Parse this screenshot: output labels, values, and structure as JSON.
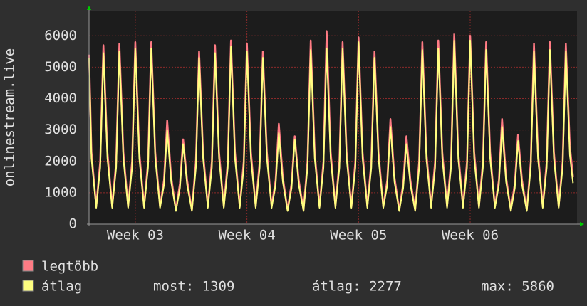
{
  "chart_data": {
    "type": "line",
    "y_label": "onlinestream.live",
    "x": [
      0,
      0.15,
      0.45,
      0.7,
      0.9,
      1.15,
      1.45,
      1.7,
      1.9,
      2.15,
      2.45,
      2.7,
      2.9,
      3.15,
      3.45,
      3.7,
      3.9,
      4.15,
      4.45,
      4.7,
      4.9,
      5.15,
      5.45,
      5.7,
      5.9,
      6.15,
      6.45,
      6.7,
      6.9,
      7.15,
      7.45,
      7.7,
      7.9,
      8.15,
      8.45,
      8.7,
      8.9,
      9.15,
      9.45,
      9.7,
      9.9,
      10.15,
      10.45,
      10.7,
      10.9,
      11.15,
      11.45,
      11.7,
      11.9,
      12.15,
      12.45,
      12.7,
      12.9,
      13.15,
      13.45,
      13.7,
      13.9,
      14.15,
      14.45,
      14.7,
      14.9,
      15.15,
      15.45,
      15.7,
      15.9,
      16.15,
      16.45,
      16.7,
      16.9,
      17.15,
      17.45,
      17.7,
      17.9,
      18.15,
      18.45,
      18.7,
      18.9,
      19.15,
      19.45,
      19.7,
      19.9,
      20.15,
      20.45,
      20.7,
      20.9,
      21.15,
      21.45,
      21.7,
      21.9,
      22.15,
      22.45,
      22.7,
      22.9,
      23.15,
      23.45,
      23.7,
      23.9,
      24.15,
      24.45,
      24.7,
      24.9,
      25.15,
      25.45,
      25.7,
      25.9,
      26.15,
      26.45,
      26.7,
      26.9,
      27.15,
      27.45,
      27.7,
      27.9,
      28.15,
      28.45,
      28.7,
      28.9,
      29.15,
      29.45,
      29.7,
      29.9,
      30.15,
      30.35
    ],
    "xlim": [
      0,
      30.6
    ],
    "xticks": [
      {
        "value": 2.9,
        "label": "Week 03"
      },
      {
        "value": 9.9,
        "label": "Week 04"
      },
      {
        "value": 16.9,
        "label": "Week 05"
      },
      {
        "value": 23.9,
        "label": "Week 06"
      }
    ],
    "ylim": [
      0,
      6800
    ],
    "yticks": [
      0,
      1000,
      2000,
      3000,
      4000,
      5000,
      6000
    ],
    "grid": true,
    "series": [
      {
        "name": "legtöbb",
        "color": "#ff7b84",
        "values": [
          5400,
          2300,
          560,
          2000,
          5700,
          2300,
          560,
          2000,
          5750,
          2300,
          560,
          2000,
          5800,
          2300,
          560,
          2000,
          5800,
          2300,
          560,
          1400,
          3300,
          1500,
          450,
          1300,
          2700,
          1400,
          450,
          2000,
          5500,
          2300,
          560,
          2000,
          5700,
          2300,
          560,
          2000,
          5850,
          2300,
          560,
          2000,
          5750,
          2300,
          560,
          2000,
          5500,
          2300,
          560,
          1400,
          3200,
          1500,
          450,
          1300,
          2800,
          1400,
          450,
          2000,
          5850,
          2300,
          560,
          2000,
          6150,
          2300,
          560,
          2000,
          5800,
          2300,
          560,
          2000,
          5950,
          2300,
          560,
          2000,
          5500,
          2300,
          560,
          1400,
          3350,
          1500,
          450,
          1300,
          2800,
          1400,
          450,
          2000,
          5800,
          2300,
          560,
          2000,
          5850,
          2300,
          560,
          2000,
          6050,
          2300,
          560,
          2000,
          6000,
          2300,
          560,
          2000,
          5800,
          2300,
          560,
          1400,
          3350,
          1500,
          450,
          1300,
          2850,
          1400,
          450,
          2000,
          5750,
          2300,
          560,
          2000,
          5800,
          2300,
          560,
          2000,
          5750,
          2500,
          1500
        ]
      },
      {
        "name": "átlag",
        "color": "#ffff80",
        "values": [
          5300,
          2100,
          520,
          1800,
          5450,
          2100,
          520,
          1800,
          5500,
          2100,
          520,
          1800,
          5600,
          2100,
          520,
          1800,
          5600,
          2100,
          520,
          1250,
          3000,
          1350,
          420,
          1150,
          2550,
          1250,
          420,
          1800,
          5300,
          2100,
          520,
          1800,
          5450,
          2100,
          520,
          1800,
          5650,
          2100,
          520,
          1800,
          5500,
          2100,
          520,
          1800,
          5300,
          2100,
          520,
          1250,
          2900,
          1350,
          420,
          1150,
          2700,
          1250,
          420,
          1800,
          5550,
          2100,
          520,
          1800,
          5600,
          2100,
          520,
          1800,
          5600,
          2100,
          520,
          1800,
          5800,
          2100,
          520,
          1800,
          5300,
          2100,
          520,
          1250,
          3100,
          1350,
          420,
          1150,
          2550,
          1250,
          420,
          1800,
          5550,
          2100,
          520,
          1800,
          5600,
          2100,
          520,
          1800,
          5850,
          2100,
          520,
          1800,
          5850,
          2100,
          520,
          1800,
          5550,
          2100,
          520,
          1250,
          3100,
          1350,
          420,
          1150,
          2650,
          1250,
          420,
          1800,
          5500,
          2100,
          520,
          1800,
          5550,
          2100,
          520,
          1800,
          5500,
          2200,
          1309
        ]
      }
    ],
    "stats": [
      "most: 1309",
      "átlag: 2277",
      "max: 5860"
    ]
  }
}
